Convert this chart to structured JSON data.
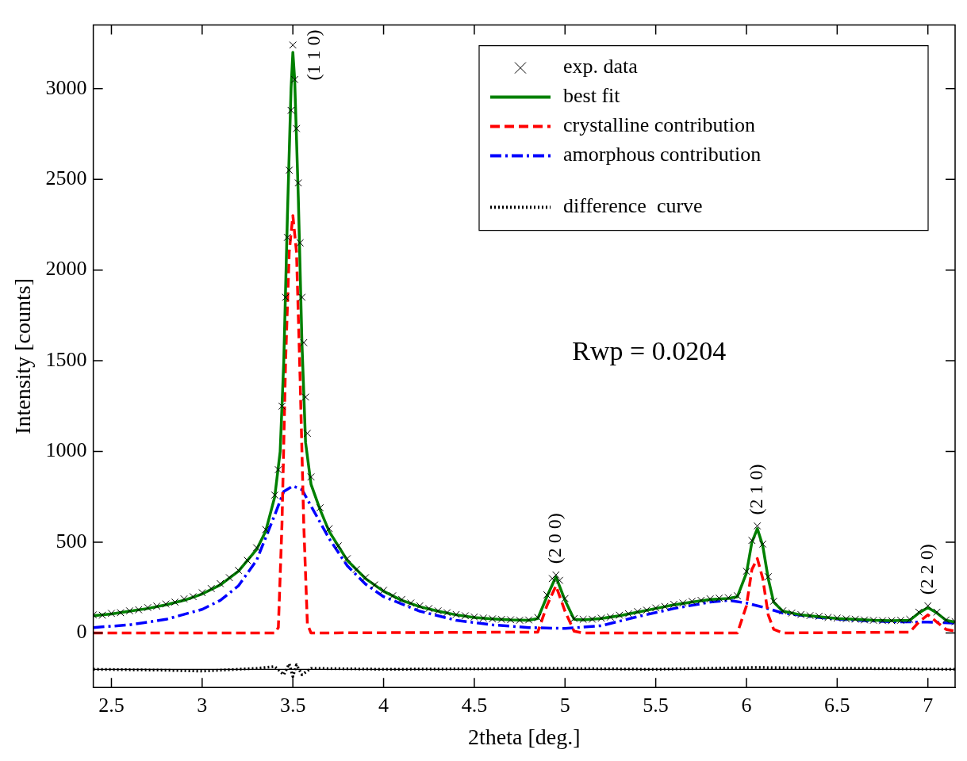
{
  "chart_data": {
    "type": "line",
    "xlabel": "2theta [deg.]",
    "ylabel": "Intensity [counts]",
    "xlim": [
      2.4,
      7.15
    ],
    "xticks": [
      2.5,
      3,
      3.5,
      4,
      4.5,
      5,
      5.5,
      6,
      6.5,
      7
    ],
    "ylim": [
      -300,
      3350
    ],
    "yticks": [
      0,
      500,
      1000,
      1500,
      2000,
      2500,
      3000
    ],
    "grid": false,
    "legend": "top right",
    "series": [
      {
        "name": "exp. data",
        "type": "scatter",
        "marker": "cross",
        "color": "#000000",
        "x": [
          2.4,
          2.45,
          2.5,
          2.55,
          2.6,
          2.65,
          2.7,
          2.75,
          2.8,
          2.85,
          2.9,
          2.95,
          3.0,
          3.05,
          3.1,
          3.15,
          3.2,
          3.25,
          3.3,
          3.35,
          3.4,
          3.42,
          3.44,
          3.46,
          3.47,
          3.48,
          3.49,
          3.5,
          3.51,
          3.52,
          3.53,
          3.54,
          3.55,
          3.56,
          3.57,
          3.58,
          3.6,
          3.65,
          3.7,
          3.75,
          3.8,
          3.85,
          3.9,
          3.95,
          4.0,
          4.05,
          4.1,
          4.15,
          4.2,
          4.25,
          4.3,
          4.35,
          4.4,
          4.45,
          4.5,
          4.55,
          4.6,
          4.65,
          4.7,
          4.75,
          4.8,
          4.85,
          4.9,
          4.93,
          4.95,
          4.97,
          5.0,
          5.05,
          5.1,
          5.15,
          5.2,
          5.25,
          5.3,
          5.35,
          5.4,
          5.45,
          5.5,
          5.55,
          5.6,
          5.65,
          5.7,
          5.75,
          5.8,
          5.85,
          5.9,
          5.95,
          6.0,
          6.03,
          6.06,
          6.09,
          6.12,
          6.15,
          6.2,
          6.25,
          6.3,
          6.35,
          6.4,
          6.45,
          6.5,
          6.55,
          6.6,
          6.65,
          6.7,
          6.75,
          6.8,
          6.85,
          6.9,
          6.95,
          7.0,
          7.05,
          7.1,
          7.15
        ],
        "values": [
          100,
          98,
          108,
          112,
          122,
          128,
          140,
          148,
          160,
          170,
          188,
          200,
          222,
          245,
          272,
          305,
          345,
          400,
          470,
          570,
          760,
          900,
          1250,
          1850,
          2180,
          2550,
          2880,
          3240,
          3050,
          2780,
          2480,
          2150,
          1850,
          1600,
          1300,
          1100,
          860,
          690,
          575,
          480,
          410,
          350,
          305,
          265,
          235,
          205,
          185,
          165,
          150,
          135,
          122,
          112,
          102,
          95,
          88,
          82,
          78,
          75,
          73,
          70,
          72,
          85,
          210,
          300,
          320,
          290,
          190,
          80,
          75,
          76,
          82,
          88,
          98,
          106,
          118,
          126,
          138,
          146,
          158,
          165,
          174,
          180,
          188,
          192,
          195,
          205,
          340,
          510,
          590,
          490,
          310,
          175,
          122,
          110,
          102,
          96,
          92,
          86,
          82,
          78,
          76,
          72,
          70,
          68,
          68,
          70,
          75,
          115,
          150,
          115,
          72,
          62
        ]
      },
      {
        "name": "best fit",
        "line_style": "solid",
        "color": "#008000",
        "x": [
          2.4,
          2.5,
          2.6,
          2.7,
          2.8,
          2.9,
          3.0,
          3.1,
          3.2,
          3.3,
          3.35,
          3.4,
          3.43,
          3.45,
          3.47,
          3.49,
          3.5,
          3.51,
          3.53,
          3.55,
          3.57,
          3.6,
          3.65,
          3.7,
          3.8,
          3.9,
          4.0,
          4.1,
          4.2,
          4.3,
          4.4,
          4.5,
          4.6,
          4.7,
          4.8,
          4.85,
          4.9,
          4.95,
          5.0,
          5.05,
          5.1,
          5.2,
          5.3,
          5.4,
          5.5,
          5.6,
          5.7,
          5.8,
          5.9,
          5.95,
          6.0,
          6.03,
          6.06,
          6.09,
          6.12,
          6.15,
          6.2,
          6.3,
          6.4,
          6.5,
          6.6,
          6.7,
          6.8,
          6.9,
          6.95,
          7.0,
          7.05,
          7.1,
          7.15
        ],
        "values": [
          95,
          105,
          120,
          135,
          155,
          180,
          215,
          265,
          340,
          460,
          560,
          750,
          1000,
          1500,
          2300,
          3000,
          3200,
          3050,
          2400,
          1600,
          1050,
          820,
          680,
          560,
          400,
          300,
          230,
          180,
          145,
          120,
          100,
          85,
          78,
          72,
          70,
          80,
          200,
          310,
          180,
          75,
          72,
          80,
          95,
          115,
          135,
          155,
          170,
          185,
          190,
          200,
          330,
          500,
          575,
          480,
          300,
          170,
          120,
          100,
          90,
          80,
          75,
          70,
          68,
          70,
          110,
          140,
          110,
          70,
          60
        ]
      },
      {
        "name": "crystalline contribution",
        "line_style": "dashed",
        "color": "#ff0000",
        "x": [
          2.4,
          3.4,
          3.42,
          3.44,
          3.46,
          3.48,
          3.5,
          3.52,
          3.54,
          3.56,
          3.58,
          3.6,
          4.85,
          4.9,
          4.95,
          5.0,
          5.05,
          5.1,
          5.95,
          6.0,
          6.03,
          6.06,
          6.09,
          6.12,
          6.15,
          6.2,
          6.9,
          6.95,
          7.0,
          7.05,
          7.1,
          7.15
        ],
        "values": [
          0,
          0,
          30,
          600,
          1500,
          2100,
          2300,
          2100,
          1400,
          600,
          50,
          0,
          5,
          150,
          260,
          120,
          10,
          0,
          0,
          150,
          350,
          410,
          300,
          100,
          20,
          0,
          5,
          60,
          100,
          60,
          20,
          10
        ]
      },
      {
        "name": "amorphous contribution",
        "line_style": "dashdot",
        "color": "#0000ff",
        "x": [
          2.4,
          2.6,
          2.8,
          3.0,
          3.1,
          3.2,
          3.3,
          3.4,
          3.45,
          3.5,
          3.55,
          3.6,
          3.7,
          3.8,
          3.9,
          4.0,
          4.2,
          4.4,
          4.6,
          4.8,
          5.0,
          5.2,
          5.4,
          5.6,
          5.8,
          5.9,
          6.0,
          6.1,
          6.2,
          6.4,
          6.6,
          6.8,
          7.0,
          7.15
        ],
        "values": [
          30,
          45,
          75,
          130,
          180,
          260,
          400,
          650,
          780,
          810,
          790,
          700,
          520,
          370,
          270,
          200,
          120,
          70,
          45,
          30,
          25,
          40,
          90,
          135,
          170,
          180,
          165,
          140,
          110,
          85,
          70,
          62,
          60,
          55
        ]
      },
      {
        "name": "difference  curve",
        "line_style": "dotted",
        "color": "#000000",
        "x": [
          2.4,
          2.8,
          3.0,
          3.3,
          3.4,
          3.45,
          3.48,
          3.5,
          3.52,
          3.55,
          3.6,
          4.0,
          4.95,
          5.5,
          6.05,
          7.15
        ],
        "values": [
          -200,
          -205,
          -210,
          -195,
          -185,
          -230,
          -170,
          -240,
          -175,
          -230,
          -195,
          -200,
          -195,
          -200,
          -190,
          -200
        ]
      }
    ],
    "ref_lines": [
      {
        "axis": "y",
        "value": -200,
        "color": "#000000"
      }
    ],
    "annotations": [
      "Rwp = 0.0204",
      {
        "text": "(1 1 0)",
        "x": 3.5,
        "y": 3240
      },
      {
        "text": "(2 0 0)",
        "x": 4.95,
        "y": 320
      },
      {
        "text": "(2 1 0)",
        "x": 6.06,
        "y": 590
      },
      {
        "text": "(2 2 0)",
        "x": 7.0,
        "y": 150
      }
    ]
  }
}
